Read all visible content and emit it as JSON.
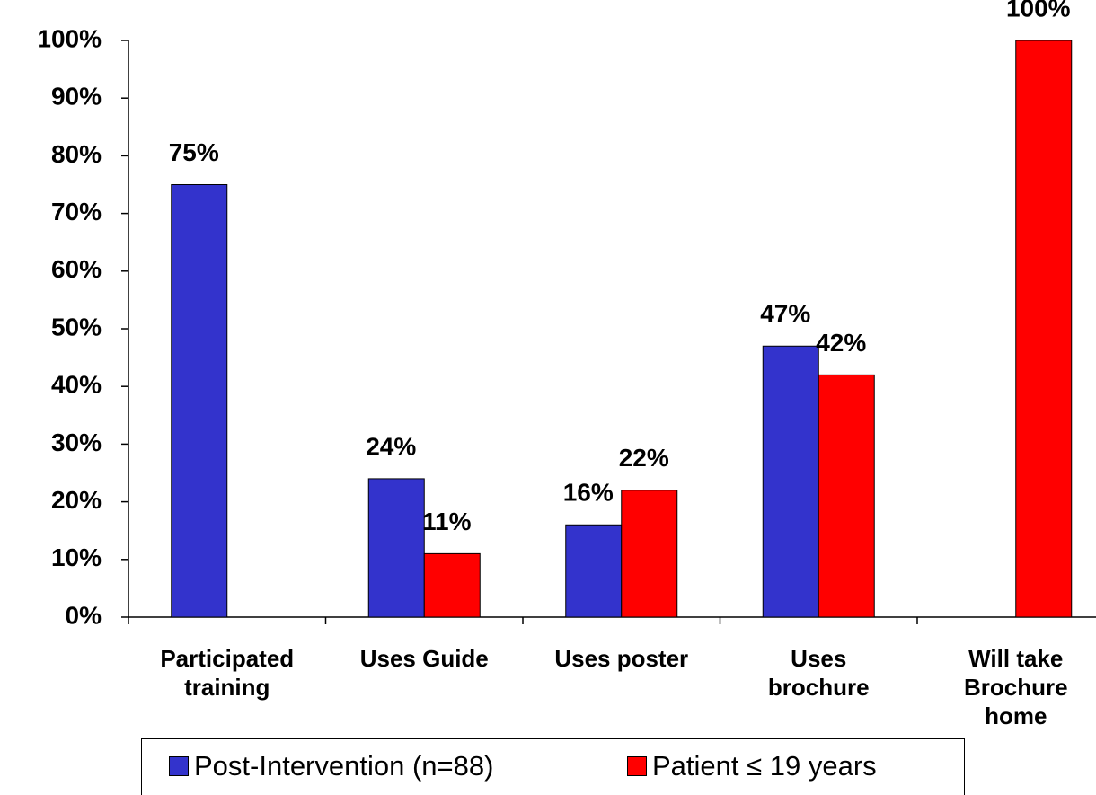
{
  "chart_data": {
    "type": "bar",
    "categories": [
      "Participated\ntraining",
      "Uses Guide",
      "Uses poster",
      "Uses\nbrochure",
      "Will take\nBrochure\nhome"
    ],
    "series": [
      {
        "name": "Post-Intervention (n=88)",
        "color": "#3333cc",
        "values": [
          75,
          24,
          16,
          47,
          null
        ],
        "value_labels": [
          "75%",
          "24%",
          "16%",
          "47%",
          null
        ]
      },
      {
        "name": "Patient ≤ 19 years",
        "color": "#ff0000",
        "values": [
          null,
          11,
          22,
          42,
          100
        ],
        "value_labels": [
          null,
          "11%",
          "22%",
          "42%",
          "100%"
        ]
      }
    ],
    "ylim": [
      0,
      100
    ],
    "yticks": [
      {
        "value": 0,
        "label": "0%"
      },
      {
        "value": 10,
        "label": "10%"
      },
      {
        "value": 20,
        "label": "20%"
      },
      {
        "value": 30,
        "label": "30%"
      },
      {
        "value": 40,
        "label": "40%"
      },
      {
        "value": 50,
        "label": "50%"
      },
      {
        "value": 60,
        "label": "60%"
      },
      {
        "value": 70,
        "label": "70%"
      },
      {
        "value": 80,
        "label": "80%"
      },
      {
        "value": 90,
        "label": "90%"
      },
      {
        "value": 100,
        "label": "100%"
      }
    ],
    "grid": false,
    "legend": "bottom"
  }
}
